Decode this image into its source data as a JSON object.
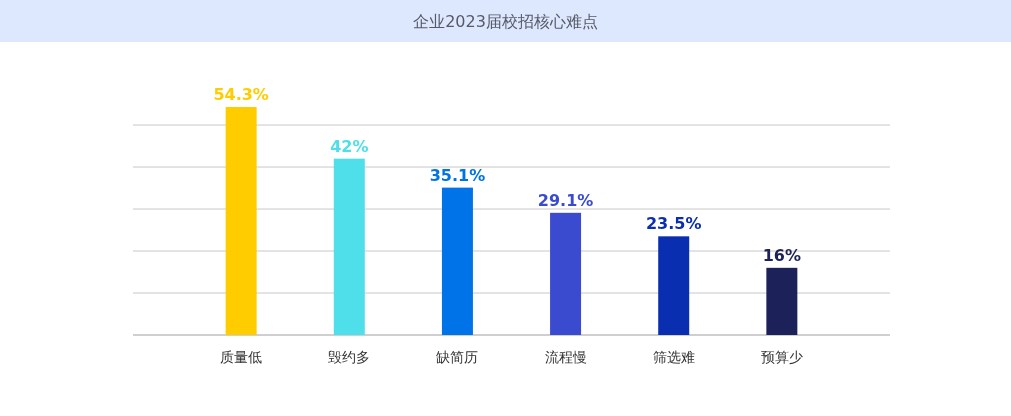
{
  "chart_data": {
    "type": "bar",
    "title": "企业2023届校招核心难点",
    "categories": [
      "质量低",
      "毁约多",
      "缺简历",
      "流程慢",
      "筛选难",
      "预算少"
    ],
    "values": [
      54.3,
      42,
      35.1,
      29.1,
      23.5,
      16
    ],
    "value_labels": [
      "54.3%",
      "42%",
      "35.1%",
      "29.1%",
      "23.5%",
      "16%"
    ],
    "colors": [
      "#ffcc00",
      "#4fdfea",
      "#0073e8",
      "#3a4bcf",
      "#0a2eb0",
      "#1c2259"
    ],
    "grid": "y",
    "tick_labels": "x"
  }
}
